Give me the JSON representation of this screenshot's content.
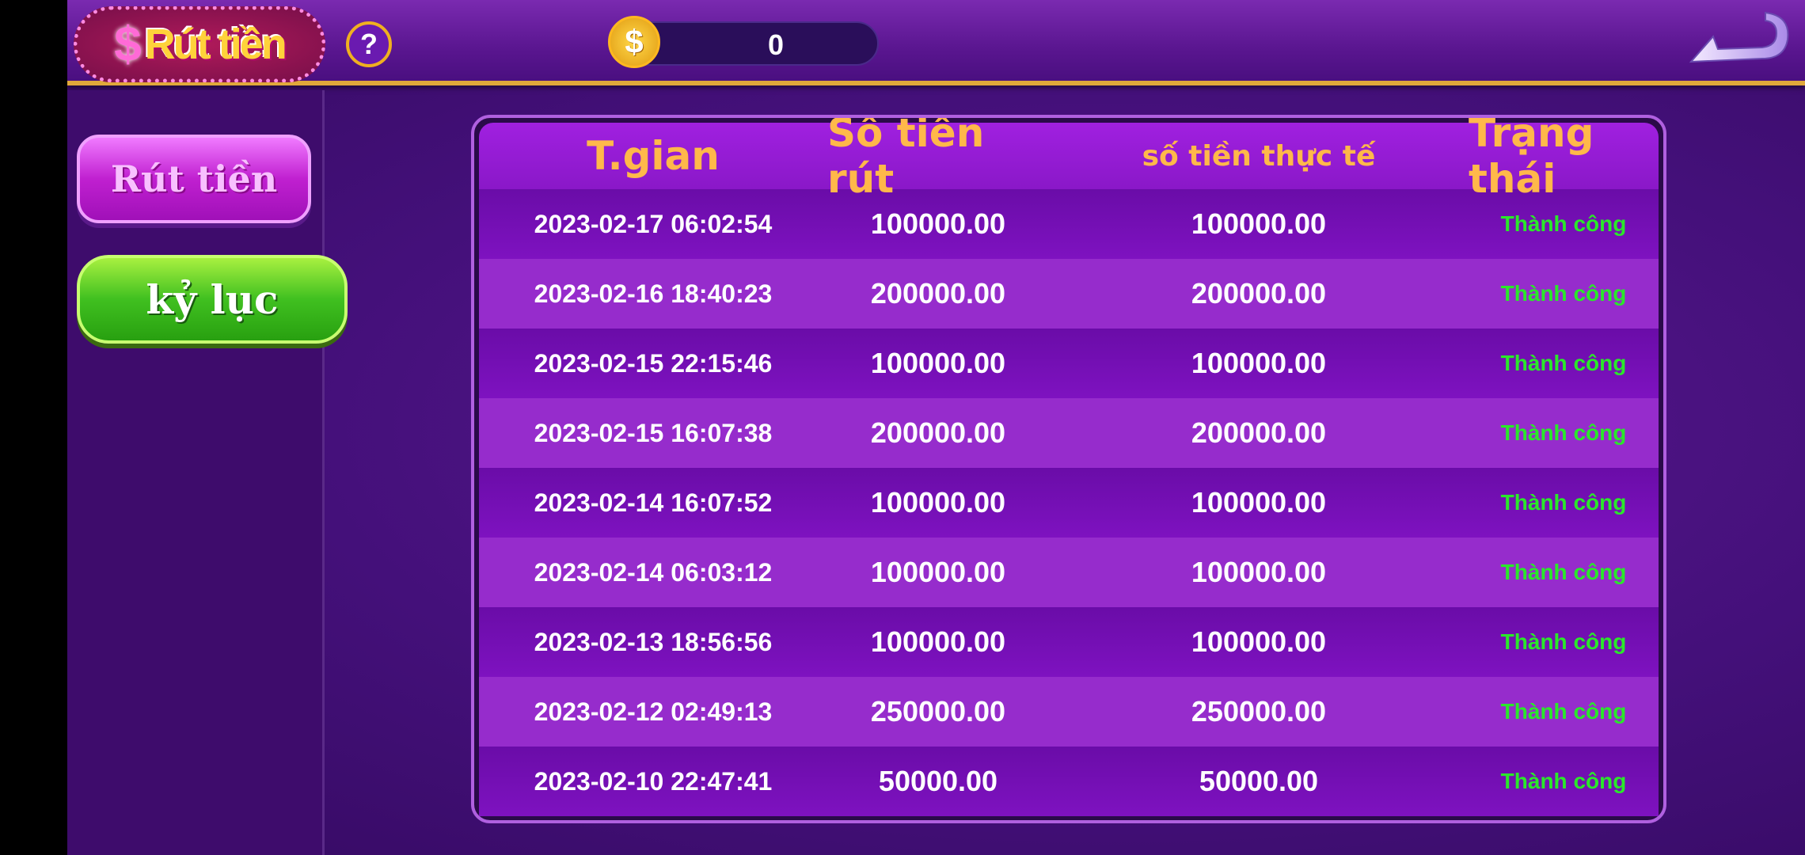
{
  "header": {
    "title": "Rút tiền",
    "title_symbol": "$",
    "help_label": "?",
    "balance": "0",
    "coin_symbol": "$"
  },
  "sidebar": {
    "items": [
      {
        "label": "Rút tiền"
      },
      {
        "label": "kỷ lục"
      }
    ]
  },
  "table": {
    "headers": [
      "T.gian",
      "Số tiền rút",
      "số tiền thực tế",
      "Trạng thái"
    ],
    "rows": [
      [
        "2023-02-17 06:02:54",
        "100000.00",
        "100000.00",
        "Thành công"
      ],
      [
        "2023-02-16 18:40:23",
        "200000.00",
        "200000.00",
        "Thành công"
      ],
      [
        "2023-02-15 22:15:46",
        "100000.00",
        "100000.00",
        "Thành công"
      ],
      [
        "2023-02-15 16:07:38",
        "200000.00",
        "200000.00",
        "Thành công"
      ],
      [
        "2023-02-14 16:07:52",
        "100000.00",
        "100000.00",
        "Thành công"
      ],
      [
        "2023-02-14 06:03:12",
        "100000.00",
        "100000.00",
        "Thành công"
      ],
      [
        "2023-02-13 18:56:56",
        "100000.00",
        "100000.00",
        "Thành công"
      ],
      [
        "2023-02-12 02:49:13",
        "250000.00",
        "250000.00",
        "Thành công"
      ],
      [
        "2023-02-10 22:47:41",
        "50000.00",
        "50000.00",
        "Thành công"
      ]
    ]
  },
  "colors": {
    "header_text": "#ffb84a",
    "status_success": "#2ae82a",
    "accent_gold": "#e0a83a"
  }
}
